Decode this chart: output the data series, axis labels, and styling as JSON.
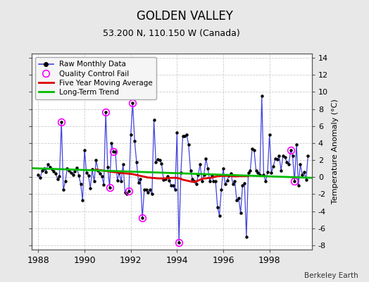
{
  "title": "GOLDEN VALLEY",
  "subtitle": "53.200 N, 110.150 W (Canada)",
  "credit": "Berkeley Earth",
  "ylabel": "Temperature Anomaly (°C)",
  "ylim": [
    -8.5,
    14.5
  ],
  "xlim": [
    1987.7,
    1999.83
  ],
  "yticks": [
    -8,
    -6,
    -4,
    -2,
    0,
    2,
    4,
    6,
    8,
    10,
    12,
    14
  ],
  "xticks": [
    1988,
    1990,
    1992,
    1994,
    1996,
    1998
  ],
  "bg_color": "#e8e8e8",
  "plot_bg_color": "#ffffff",
  "grid_color": "#cccccc",
  "line_color": "#4444dd",
  "dot_color": "#000000",
  "ma_color": "#dd0000",
  "trend_color": "#00bb00",
  "qc_color": "#ff00ff",
  "raw_data": [
    [
      1988.0,
      0.3
    ],
    [
      1988.083,
      -0.1
    ],
    [
      1988.167,
      0.8
    ],
    [
      1988.25,
      1.0
    ],
    [
      1988.333,
      0.6
    ],
    [
      1988.417,
      1.5
    ],
    [
      1988.5,
      1.2
    ],
    [
      1988.583,
      0.9
    ],
    [
      1988.667,
      0.7
    ],
    [
      1988.75,
      0.4
    ],
    [
      1988.833,
      -0.2
    ],
    [
      1988.917,
      0.1
    ],
    [
      1989.0,
      6.5
    ],
    [
      1989.083,
      -1.5
    ],
    [
      1989.167,
      -0.5
    ],
    [
      1989.25,
      1.0
    ],
    [
      1989.333,
      0.8
    ],
    [
      1989.417,
      0.5
    ],
    [
      1989.5,
      0.3
    ],
    [
      1989.583,
      0.7
    ],
    [
      1989.667,
      1.1
    ],
    [
      1989.75,
      0.2
    ],
    [
      1989.833,
      -0.8
    ],
    [
      1989.917,
      -2.7
    ],
    [
      1990.0,
      3.2
    ],
    [
      1990.083,
      0.5
    ],
    [
      1990.167,
      0.2
    ],
    [
      1990.25,
      -1.3
    ],
    [
      1990.333,
      0.9
    ],
    [
      1990.417,
      -0.5
    ],
    [
      1990.5,
      2.0
    ],
    [
      1990.583,
      0.8
    ],
    [
      1990.667,
      0.4
    ],
    [
      1990.75,
      0.1
    ],
    [
      1990.833,
      -0.9
    ],
    [
      1990.917,
      7.6
    ],
    [
      1991.0,
      1.2
    ],
    [
      1991.083,
      -1.2
    ],
    [
      1991.167,
      4.0
    ],
    [
      1991.25,
      3.0
    ],
    [
      1991.333,
      3.0
    ],
    [
      1991.417,
      -0.4
    ],
    [
      1991.5,
      0.5
    ],
    [
      1991.583,
      -0.5
    ],
    [
      1991.667,
      1.5
    ],
    [
      1991.75,
      -1.8
    ],
    [
      1991.833,
      -2.0
    ],
    [
      1991.917,
      -1.6
    ],
    [
      1992.0,
      5.0
    ],
    [
      1992.083,
      8.7
    ],
    [
      1992.167,
      4.2
    ],
    [
      1992.25,
      1.8
    ],
    [
      1992.333,
      -0.6
    ],
    [
      1992.417,
      -0.2
    ],
    [
      1992.5,
      -4.8
    ],
    [
      1992.583,
      -1.5
    ],
    [
      1992.667,
      -1.5
    ],
    [
      1992.75,
      -1.8
    ],
    [
      1992.833,
      -1.5
    ],
    [
      1992.917,
      -2.0
    ],
    [
      1993.0,
      6.7
    ],
    [
      1993.083,
      1.8
    ],
    [
      1993.167,
      2.1
    ],
    [
      1993.25,
      2.0
    ],
    [
      1993.333,
      1.6
    ],
    [
      1993.417,
      -0.3
    ],
    [
      1993.5,
      -0.2
    ],
    [
      1993.583,
      0.1
    ],
    [
      1993.667,
      -0.4
    ],
    [
      1993.75,
      -1.0
    ],
    [
      1993.833,
      -1.0
    ],
    [
      1993.917,
      -1.5
    ],
    [
      1994.0,
      5.2
    ],
    [
      1994.083,
      -7.7
    ],
    [
      1994.167,
      0.5
    ],
    [
      1994.25,
      4.8
    ],
    [
      1994.333,
      4.8
    ],
    [
      1994.417,
      5.0
    ],
    [
      1994.5,
      3.8
    ],
    [
      1994.583,
      0.8
    ],
    [
      1994.667,
      -0.2
    ],
    [
      1994.75,
      -0.5
    ],
    [
      1994.833,
      -0.8
    ],
    [
      1994.917,
      0.3
    ],
    [
      1995.0,
      1.5
    ],
    [
      1995.083,
      -0.5
    ],
    [
      1995.167,
      0.3
    ],
    [
      1995.25,
      2.2
    ],
    [
      1995.333,
      1.0
    ],
    [
      1995.417,
      -0.5
    ],
    [
      1995.5,
      0.2
    ],
    [
      1995.583,
      -0.5
    ],
    [
      1995.667,
      -0.5
    ],
    [
      1995.75,
      -3.5
    ],
    [
      1995.833,
      -4.5
    ],
    [
      1995.917,
      -1.5
    ],
    [
      1996.0,
      1.0
    ],
    [
      1996.083,
      -0.8
    ],
    [
      1996.167,
      -0.4
    ],
    [
      1996.25,
      0.2
    ],
    [
      1996.333,
      0.4
    ],
    [
      1996.417,
      -0.8
    ],
    [
      1996.5,
      -0.5
    ],
    [
      1996.583,
      -2.7
    ],
    [
      1996.667,
      -2.5
    ],
    [
      1996.75,
      -4.2
    ],
    [
      1996.833,
      -1.0
    ],
    [
      1996.917,
      -0.7
    ],
    [
      1997.0,
      -7.0
    ],
    [
      1997.083,
      0.5
    ],
    [
      1997.167,
      0.8
    ],
    [
      1997.25,
      3.3
    ],
    [
      1997.333,
      3.2
    ],
    [
      1997.417,
      0.8
    ],
    [
      1997.5,
      0.5
    ],
    [
      1997.583,
      0.3
    ],
    [
      1997.667,
      9.5
    ],
    [
      1997.75,
      0.3
    ],
    [
      1997.833,
      -0.5
    ],
    [
      1997.917,
      0.6
    ],
    [
      1998.0,
      5.0
    ],
    [
      1998.083,
      0.5
    ],
    [
      1998.167,
      1.3
    ],
    [
      1998.25,
      2.2
    ],
    [
      1998.333,
      2.1
    ],
    [
      1998.417,
      2.5
    ],
    [
      1998.5,
      0.8
    ],
    [
      1998.583,
      2.5
    ],
    [
      1998.667,
      2.3
    ],
    [
      1998.75,
      1.8
    ],
    [
      1998.833,
      1.5
    ],
    [
      1998.917,
      3.2
    ],
    [
      1999.0,
      2.5
    ],
    [
      1999.083,
      -0.5
    ],
    [
      1999.167,
      3.8
    ],
    [
      1999.25,
      -1.0
    ],
    [
      1999.333,
      1.5
    ],
    [
      1999.417,
      0.3
    ],
    [
      1999.5,
      0.6
    ],
    [
      1999.583,
      -0.3
    ],
    [
      1999.667,
      2.5
    ]
  ],
  "qc_fail_points": [
    [
      1989.0,
      6.5
    ],
    [
      1990.917,
      7.6
    ],
    [
      1991.083,
      -1.2
    ],
    [
      1991.25,
      3.0
    ],
    [
      1991.917,
      -1.6
    ],
    [
      1992.083,
      8.7
    ],
    [
      1992.5,
      -4.8
    ],
    [
      1994.083,
      -7.7
    ],
    [
      1998.917,
      3.2
    ],
    [
      1999.083,
      -0.5
    ]
  ],
  "moving_avg": [
    [
      1990.5,
      0.9
    ],
    [
      1990.583,
      0.85
    ],
    [
      1990.667,
      0.82
    ],
    [
      1990.75,
      0.8
    ],
    [
      1990.833,
      0.75
    ],
    [
      1990.917,
      0.72
    ],
    [
      1991.0,
      0.7
    ],
    [
      1991.083,
      0.65
    ],
    [
      1991.167,
      0.62
    ],
    [
      1991.25,
      0.6
    ],
    [
      1991.333,
      0.58
    ],
    [
      1991.417,
      0.55
    ],
    [
      1991.5,
      0.52
    ],
    [
      1991.583,
      0.5
    ],
    [
      1991.667,
      0.48
    ],
    [
      1991.75,
      0.45
    ],
    [
      1991.833,
      0.42
    ],
    [
      1991.917,
      0.4
    ],
    [
      1992.0,
      0.38
    ],
    [
      1992.083,
      0.35
    ],
    [
      1992.167,
      0.3
    ],
    [
      1992.25,
      0.25
    ],
    [
      1992.333,
      0.2
    ],
    [
      1992.417,
      0.15
    ],
    [
      1992.5,
      0.1
    ],
    [
      1992.583,
      0.05
    ],
    [
      1992.667,
      0.0
    ],
    [
      1992.75,
      -0.05
    ],
    [
      1992.833,
      -0.05
    ],
    [
      1992.917,
      -0.1
    ],
    [
      1993.0,
      -0.1
    ],
    [
      1993.083,
      -0.12
    ],
    [
      1993.167,
      -0.15
    ],
    [
      1993.25,
      -0.15
    ],
    [
      1993.333,
      -0.15
    ],
    [
      1993.417,
      -0.15
    ],
    [
      1993.5,
      -0.15
    ],
    [
      1993.583,
      -0.1
    ],
    [
      1993.667,
      -0.1
    ],
    [
      1993.75,
      -0.08
    ],
    [
      1993.833,
      -0.08
    ],
    [
      1993.917,
      -0.08
    ],
    [
      1994.0,
      -0.1
    ],
    [
      1994.083,
      -0.15
    ],
    [
      1994.167,
      -0.2
    ],
    [
      1994.25,
      -0.3
    ],
    [
      1994.333,
      -0.35
    ],
    [
      1994.417,
      -0.4
    ],
    [
      1994.5,
      -0.45
    ],
    [
      1994.583,
      -0.5
    ],
    [
      1994.667,
      -0.55
    ],
    [
      1994.75,
      -0.55
    ],
    [
      1994.833,
      -0.5
    ],
    [
      1994.917,
      -0.4
    ],
    [
      1995.0,
      -0.3
    ],
    [
      1995.083,
      -0.2
    ],
    [
      1995.167,
      -0.15
    ],
    [
      1995.25,
      -0.15
    ],
    [
      1995.333,
      -0.1
    ],
    [
      1995.417,
      -0.1
    ],
    [
      1995.5,
      -0.05
    ],
    [
      1995.583,
      0.0
    ],
    [
      1995.667,
      0.05
    ],
    [
      1995.75,
      0.1
    ],
    [
      1995.833,
      0.12
    ],
    [
      1995.917,
      0.15
    ],
    [
      1996.0,
      0.15
    ],
    [
      1996.083,
      0.15
    ],
    [
      1996.167,
      0.15
    ],
    [
      1996.25,
      0.15
    ],
    [
      1996.333,
      0.15
    ],
    [
      1996.417,
      0.1
    ],
    [
      1996.5,
      0.1
    ],
    [
      1996.583,
      0.1
    ],
    [
      1996.667,
      0.12
    ],
    [
      1996.75,
      0.12
    ],
    [
      1996.833,
      0.12
    ],
    [
      1996.917,
      0.12
    ],
    [
      1997.0,
      0.12
    ],
    [
      1997.083,
      0.1
    ]
  ],
  "trend_x": [
    1987.7,
    1999.83
  ],
  "trend_y": [
    1.05,
    -0.08
  ]
}
